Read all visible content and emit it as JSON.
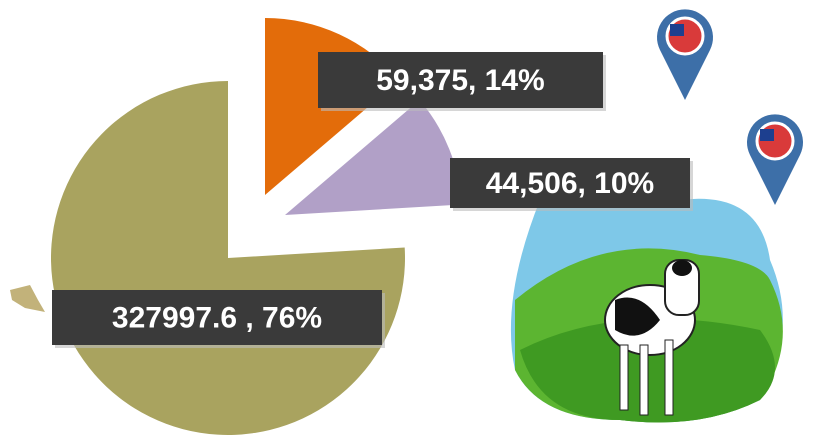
{
  "chart_data": {
    "type": "pie",
    "values": [
      59375,
      44506,
      327997.6
    ],
    "value_labels": [
      "59,375, 14%",
      "44,506, 10%",
      "327997.6 , 76%"
    ],
    "colors": [
      "#e36c0a",
      "#b1a0c7",
      "#a9a35f"
    ]
  }
}
